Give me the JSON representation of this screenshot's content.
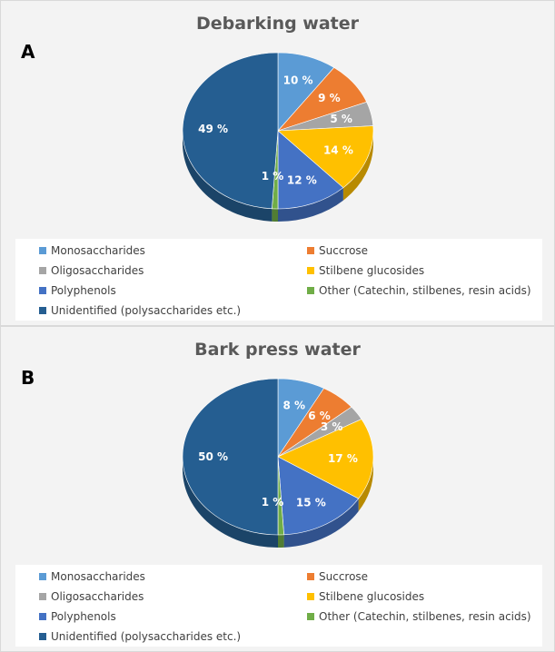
{
  "chart_data": [
    {
      "type": "pie",
      "panel_letter": "A",
      "title": "Debarking water",
      "slices": [
        {
          "label": "Monosaccharides",
          "value": 10,
          "display": "10 %",
          "color": "#5b9bd5"
        },
        {
          "label": "Succrose",
          "value": 9,
          "display": "9 %",
          "color": "#ed7d31"
        },
        {
          "label": "Oligosaccharides",
          "value": 5,
          "display": "5 %",
          "color": "#a5a5a5"
        },
        {
          "label": "Stilbene glucosides",
          "value": 14,
          "display": "14 %",
          "color": "#ffc000"
        },
        {
          "label": "Polyphenols",
          "value": 12,
          "display": "12 %",
          "color": "#4472c4"
        },
        {
          "label": "Other (Catechin, stilbenes, resin acids)",
          "value": 1,
          "display": "1 %",
          "color": "#70ad47"
        },
        {
          "label": "Unidentified (polysaccharides etc.)",
          "value": 49,
          "display": "49 %",
          "color": "#255e91"
        }
      ],
      "legend_position": "bottom"
    },
    {
      "type": "pie",
      "panel_letter": "B",
      "title": "Bark press water",
      "slices": [
        {
          "label": "Monosaccharides",
          "value": 8,
          "display": "8 %",
          "color": "#5b9bd5"
        },
        {
          "label": "Succrose",
          "value": 6,
          "display": "6 %",
          "color": "#ed7d31"
        },
        {
          "label": "Oligosaccharides",
          "value": 3,
          "display": "3 %",
          "color": "#a5a5a5"
        },
        {
          "label": "Stilbene glucosides",
          "value": 17,
          "display": "17 %",
          "color": "#ffc000"
        },
        {
          "label": "Polyphenols",
          "value": 15,
          "display": "15 %",
          "color": "#4472c4"
        },
        {
          "label": "Other (Catechin, stilbenes, resin acids)",
          "value": 1,
          "display": "1 %",
          "color": "#70ad47"
        },
        {
          "label": "Unidentified (polysaccharides etc.)",
          "value": 50,
          "display": "50 %",
          "color": "#255e91"
        }
      ],
      "legend_position": "bottom"
    }
  ]
}
